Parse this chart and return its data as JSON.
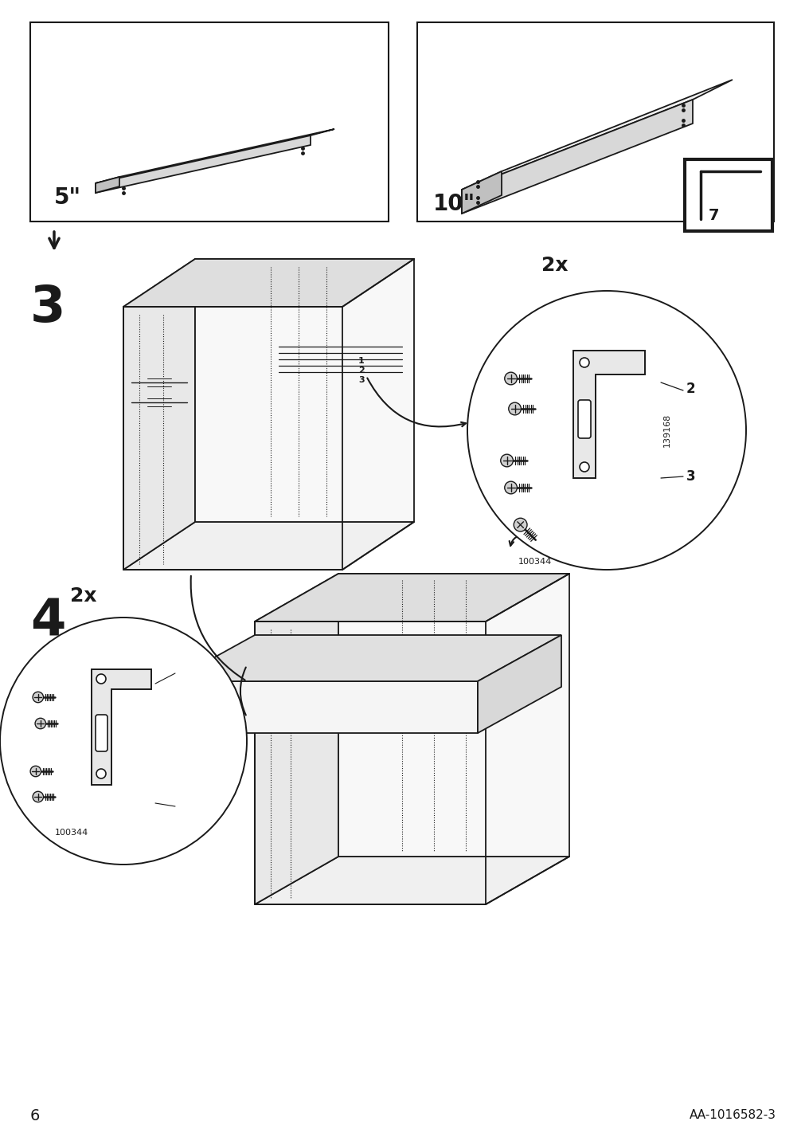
{
  "page_number": "6",
  "doc_id": "AA-1016582-3",
  "background_color": "#ffffff",
  "line_color": "#1a1a1a",
  "step3_label": "3",
  "step4_label": "4",
  "panel1_measurement": "5\"",
  "panel2_measurement": "10\"",
  "part1": "139168",
  "part2": "100344",
  "qty_label": "2x",
  "label2": "2",
  "label3": "3"
}
